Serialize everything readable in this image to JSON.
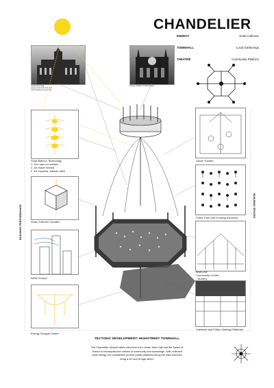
{
  "title": "CHANDELIER",
  "legend": [
    {
      "key": "ENERGY",
      "value": "Solar Collector"
    },
    {
      "key": "TOWNHALL",
      "value": "Local Gatherings"
    },
    {
      "key": "THEATRE",
      "value": "Community Platform"
    }
  ],
  "photos": {
    "left_caption": "Leeds Town Hall\nLargest town hall in the UK\nCivic building & music hall",
    "right_caption": "Oxford, College of Keble Spires"
  },
  "left_panels": [
    {
      "label": "Solar Balloon Technology\n1. Sun rays on surface\n2. Air inside heated\n3. Air expands, balloon rises"
    },
    {
      "label": "Solar Collector Candles"
    },
    {
      "label": "Wind Scoops"
    },
    {
      "label": "Energy Storage Centre"
    }
  ],
  "right_panels": [
    {
      "label": "Urban Theatre"
    },
    {
      "label": "Public Park and Growing Allotment"
    },
    {
      "label": "Multi-Use\nCommunity Centre\n- Nursery"
    },
    {
      "label": "Cafeteria and Public Viewing Platforms"
    }
  ],
  "side_labels": {
    "left": "BUILDING PERFORMANCE",
    "right": "BUILDING SPACES"
  },
  "bottom": {
    "title": "TECTONIC DEVELOPMENT: HIGHSTREET TOWNHALL",
    "description": "The Chandelier tectonic takes reference from Leeds Town Hall and the Spires of Oxford to encompass the notions of community and knowledge. With collected solar energy, the chandeliers provide public platforms along the main avenues living a 24 hour lit high street."
  },
  "colors": {
    "sun": "#f9d71c",
    "ray": "#f2d24a",
    "ink": "#111111"
  },
  "icons": [
    "sun-icon",
    "compass-rose-icon"
  ]
}
